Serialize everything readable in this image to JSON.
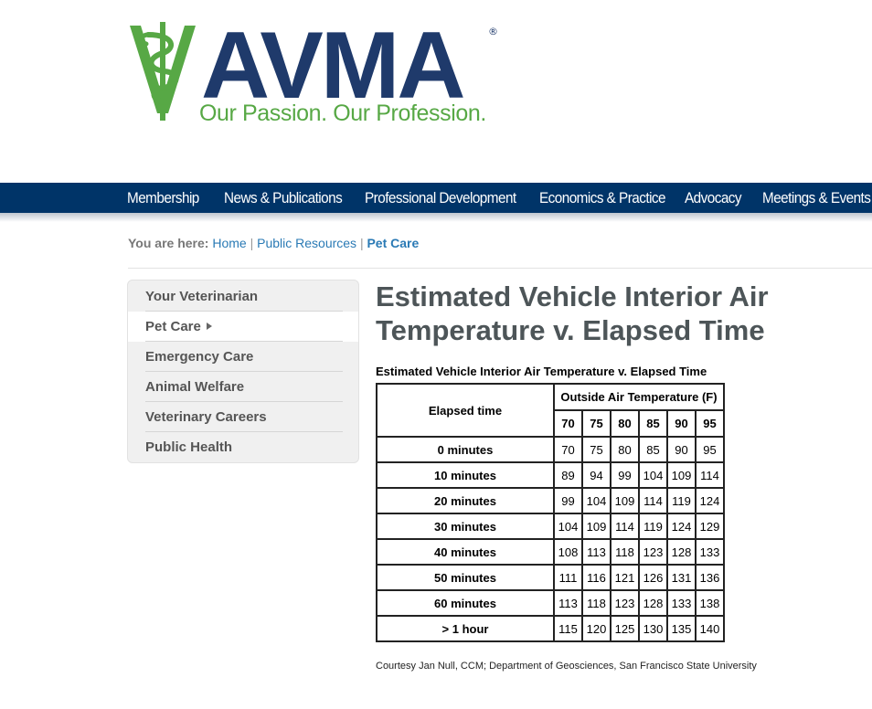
{
  "logo": {
    "wordmark": "AVMA",
    "registered": "®",
    "tagline": "Our Passion. Our Profession."
  },
  "nav": {
    "items": [
      "Membership",
      "News & Publications",
      "Professional Development",
      "Economics & Practice",
      "Advocacy",
      "Meetings & Events"
    ]
  },
  "breadcrumb": {
    "label": "You are here:",
    "links": [
      "Home",
      "Public Resources"
    ],
    "separator": "|",
    "current": "Pet Care"
  },
  "sidebar": {
    "items": [
      {
        "label": "Your Veterinarian"
      },
      {
        "label": "Pet Care",
        "active": true
      },
      {
        "label": "Emergency Care"
      },
      {
        "label": "Animal Welfare"
      },
      {
        "label": "Veterinary Careers"
      },
      {
        "label": "Public Health"
      }
    ]
  },
  "main": {
    "title": "Estimated Vehicle Interior Air Temperature v. Elapsed Time",
    "table_caption": "Estimated Vehicle Interior Air Temperature v. Elapsed Time",
    "table": {
      "row_header": "Elapsed time",
      "group_header": "Outside Air Temperature (F)",
      "temps": [
        "70",
        "75",
        "80",
        "85",
        "90",
        "95"
      ],
      "rows": [
        {
          "label": "0 minutes",
          "values": [
            "70",
            "75",
            "80",
            "85",
            "90",
            "95"
          ]
        },
        {
          "label": "10 minutes",
          "values": [
            "89",
            "94",
            "99",
            "104",
            "109",
            "114"
          ]
        },
        {
          "label": "20 minutes",
          "values": [
            "99",
            "104",
            "109",
            "114",
            "119",
            "124"
          ]
        },
        {
          "label": "30 minutes",
          "values": [
            "104",
            "109",
            "114",
            "119",
            "124",
            "129"
          ]
        },
        {
          "label": "40 minutes",
          "values": [
            "108",
            "113",
            "118",
            "123",
            "128",
            "133"
          ]
        },
        {
          "label": "50 minutes",
          "values": [
            "111",
            "116",
            "121",
            "126",
            "131",
            "136"
          ]
        },
        {
          "label": "60 minutes",
          "values": [
            "113",
            "118",
            "123",
            "128",
            "133",
            "138"
          ]
        },
        {
          "label": "> 1 hour",
          "values": [
            "115",
            "120",
            "125",
            "130",
            "135",
            "140"
          ]
        }
      ]
    },
    "courtesy": "Courtesy Jan Null, CCM; Department of Geosciences, San Francisco State University"
  },
  "colors": {
    "brand_navy": "#1f3a6b",
    "brand_green": "#57a845",
    "nav_bg": "#003468",
    "link": "#2a7ab5"
  }
}
